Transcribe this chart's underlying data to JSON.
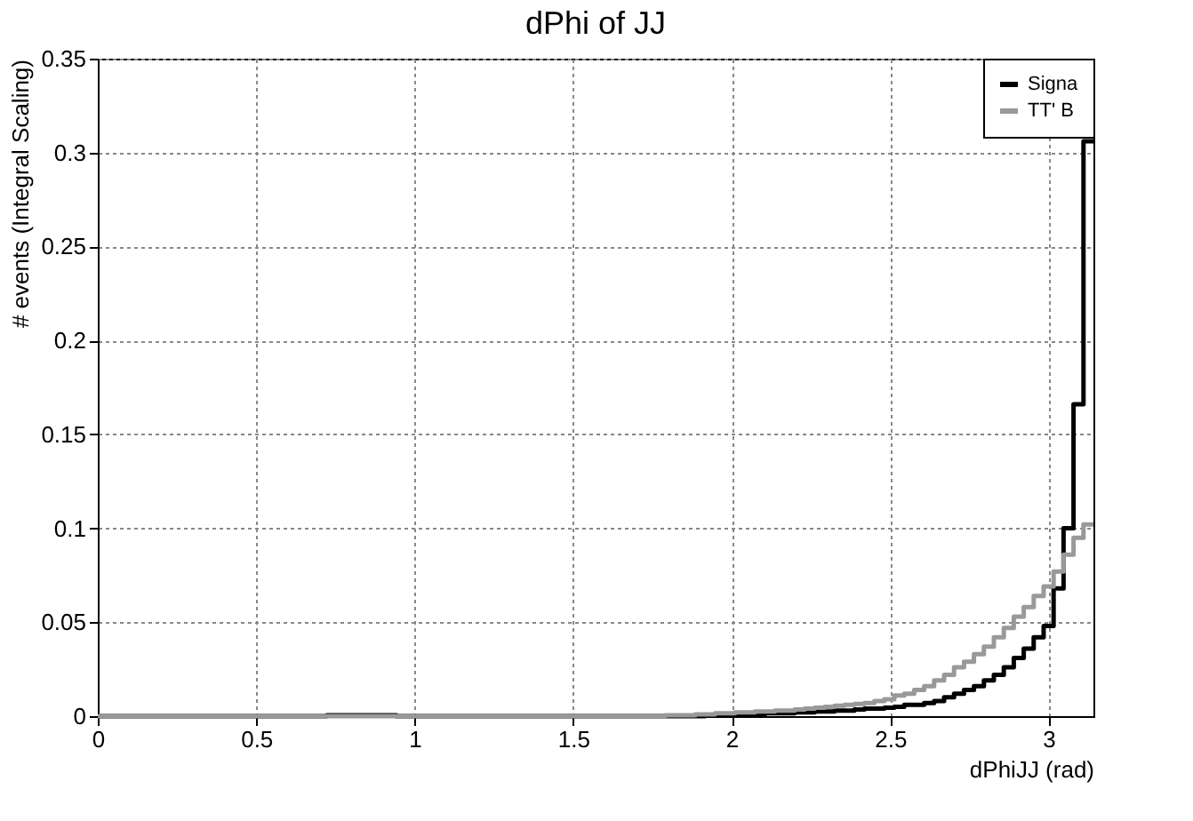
{
  "chart_data": {
    "type": "histogram",
    "title": "dPhi of JJ",
    "xlabel": "dPhiJJ (rad)",
    "ylabel": "# events (Integral Scaling)",
    "bins": [
      0,
      0.0314,
      0.0628,
      0.0942,
      0.1257,
      0.1571,
      0.1885,
      0.2199,
      0.2513,
      0.2827,
      0.3142,
      0.3456,
      0.377,
      0.4084,
      0.4398,
      0.4712,
      0.5027,
      0.5341,
      0.5655,
      0.5969,
      0.6283,
      0.6597,
      0.6912,
      0.7226,
      0.754,
      0.7854,
      0.8168,
      0.8482,
      0.8796,
      0.9111,
      0.9425,
      0.9739,
      1.0053,
      1.0367,
      1.0681,
      1.0996,
      1.131,
      1.1624,
      1.1938,
      1.2252,
      1.2566,
      1.2881,
      1.3195,
      1.3509,
      1.3823,
      1.4137,
      1.4451,
      1.4765,
      1.508,
      1.5394,
      1.5708,
      1.6022,
      1.6336,
      1.665,
      1.6965,
      1.7279,
      1.7593,
      1.7907,
      1.8221,
      1.8535,
      1.885,
      1.9164,
      1.9478,
      1.9792,
      2.0106,
      2.042,
      2.0735,
      2.1049,
      2.1363,
      2.1677,
      2.1991,
      2.2305,
      2.2619,
      2.2934,
      2.3248,
      2.3562,
      2.3876,
      2.419,
      2.4504,
      2.4819,
      2.5133,
      2.5447,
      2.5761,
      2.6075,
      2.6389,
      2.6704,
      2.7018,
      2.7332,
      2.7646,
      2.796,
      2.8274,
      2.8588,
      2.8903,
      2.9217,
      2.9531,
      2.9845,
      3.0159,
      3.0473,
      3.0788,
      3.1102,
      3.1416
    ],
    "series": [
      {
        "name": "Signa",
        "color": "#000000",
        "values": [
          0,
          0,
          0,
          0,
          0,
          0,
          0,
          0,
          0,
          0,
          0,
          0,
          0,
          0,
          0,
          0,
          0,
          0,
          0,
          0,
          0,
          0,
          0,
          0.0005,
          0.0005,
          0.0005,
          0.0005,
          0.0005,
          0.0005,
          0.0005,
          0,
          0,
          0,
          0,
          0,
          0,
          0,
          0,
          0,
          0,
          0,
          0,
          0,
          0,
          0,
          0,
          0,
          0,
          0,
          0,
          0,
          0,
          0,
          0,
          0,
          0,
          0,
          0,
          0,
          0,
          0,
          0.0005,
          0.0005,
          0.0005,
          0.001,
          0.001,
          0.001,
          0.0015,
          0.0015,
          0.0015,
          0.002,
          0.002,
          0.0025,
          0.0025,
          0.003,
          0.003,
          0.0035,
          0.004,
          0.004,
          0.0045,
          0.005,
          0.006,
          0.006,
          0.007,
          0.008,
          0.01,
          0.012,
          0.014,
          0.016,
          0.019,
          0.022,
          0.026,
          0.031,
          0.036,
          0.042,
          0.048,
          0.068,
          0.1,
          0.166,
          0.306
        ]
      },
      {
        "name": "TT' B",
        "color": "#999999",
        "values": [
          0,
          0,
          0,
          0,
          0,
          0,
          0,
          0,
          0,
          0,
          0,
          0,
          0,
          0,
          0,
          0,
          0,
          0,
          0,
          0,
          0,
          0,
          0,
          0,
          0,
          0,
          0,
          0,
          0,
          0,
          0,
          0,
          0,
          0,
          0,
          0,
          0,
          0,
          0,
          0,
          0,
          0,
          0,
          0,
          0,
          0,
          0,
          0,
          0,
          0,
          0,
          0,
          0,
          0,
          0,
          0,
          0,
          0.0005,
          0.0005,
          0.0005,
          0.001,
          0.001,
          0.0015,
          0.0015,
          0.002,
          0.002,
          0.0025,
          0.0025,
          0.003,
          0.003,
          0.0035,
          0.004,
          0.0045,
          0.005,
          0.0055,
          0.006,
          0.0065,
          0.007,
          0.008,
          0.009,
          0.011,
          0.012,
          0.014,
          0.016,
          0.019,
          0.022,
          0.026,
          0.029,
          0.033,
          0.037,
          0.042,
          0.047,
          0.053,
          0.058,
          0.064,
          0.069,
          0.077,
          0.086,
          0.095,
          0.102
        ]
      }
    ],
    "xlim": [
      0,
      3.1416
    ],
    "xticks": [
      0,
      0.5,
      1,
      1.5,
      2,
      2.5,
      3
    ],
    "ylim": [
      0,
      0.35
    ],
    "yticks": [
      0,
      0.05,
      0.1,
      0.15,
      0.2,
      0.25,
      0.3,
      0.35
    ],
    "grid": true,
    "legend": "top right",
    "line_style": "solid",
    "marker": "none"
  }
}
